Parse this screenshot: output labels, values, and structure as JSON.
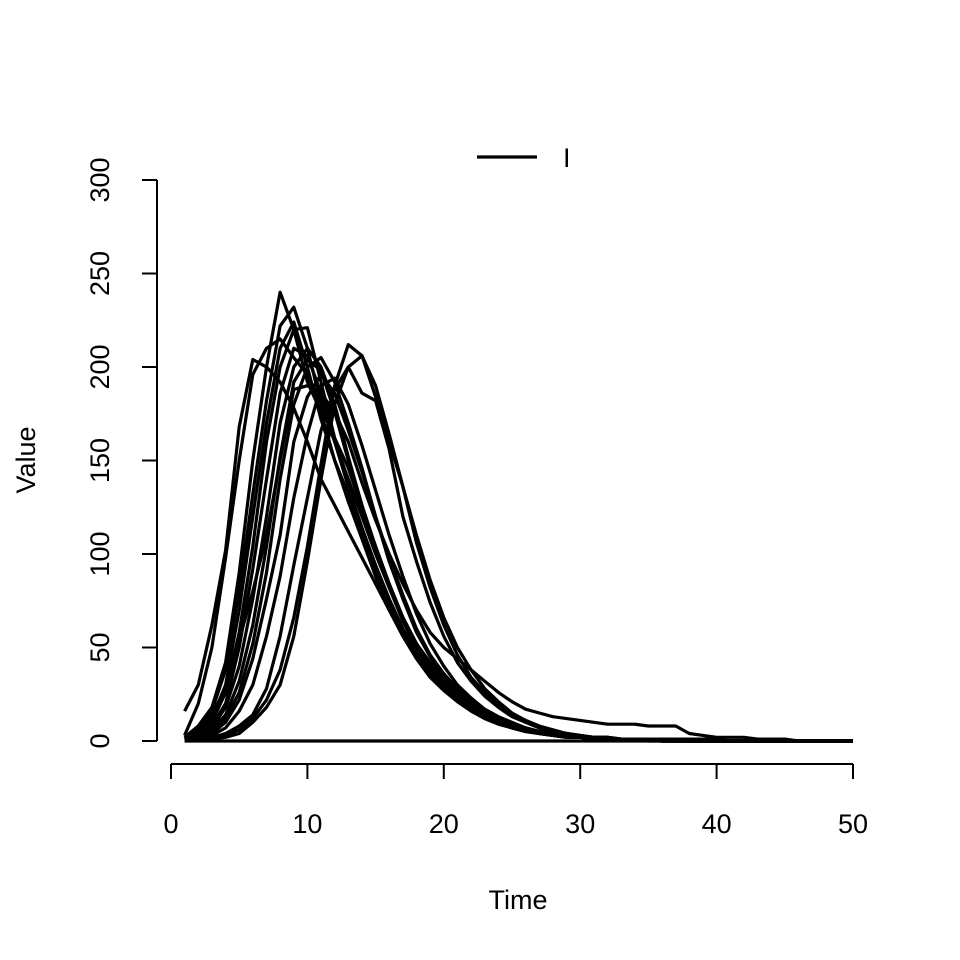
{
  "chart_data": {
    "type": "line",
    "xlabel": "Time",
    "ylabel": "Value",
    "xlim": [
      0,
      50
    ],
    "ylim": [
      0,
      300
    ],
    "x_ticks": [
      0,
      10,
      20,
      30,
      40,
      50
    ],
    "y_ticks": [
      0,
      50,
      100,
      150,
      200,
      250,
      300
    ],
    "x_tick_labels": [
      "0",
      "10",
      "20",
      "30",
      "40",
      "50"
    ],
    "y_tick_labels": [
      "0",
      "50",
      "100",
      "150",
      "200",
      "250",
      "300"
    ],
    "grid": false,
    "legend": {
      "position": "top",
      "entries": [
        {
          "label": "I",
          "color": "#000000"
        }
      ]
    },
    "line_color": "#000000",
    "x": [
      1,
      2,
      3,
      4,
      5,
      6,
      7,
      8,
      9,
      10,
      11,
      12,
      13,
      14,
      15,
      16,
      17,
      18,
      19,
      20,
      21,
      22,
      23,
      24,
      25,
      26,
      27,
      28,
      29,
      30,
      31,
      32,
      33,
      34,
      35,
      36,
      37,
      38,
      39,
      40,
      41,
      42,
      43,
      44,
      45,
      46,
      47,
      48,
      49,
      50
    ],
    "series": [
      {
        "values": [
          16,
          30,
          62,
          102,
          168,
          204,
          200,
          192,
          178,
          160,
          140,
          126,
          112,
          98,
          84,
          70,
          58,
          47,
          38,
          30,
          24,
          19,
          15,
          12,
          9,
          7,
          5,
          4,
          3,
          2,
          2,
          2,
          1,
          1,
          1,
          1,
          1,
          1,
          1,
          1,
          0,
          0,
          0,
          0,
          0,
          0,
          0,
          0,
          0,
          0
        ]
      },
      {
        "values": [
          3,
          20,
          50,
          98,
          150,
          196,
          210,
          215,
          205,
          196,
          180,
          162,
          146,
          124,
          104,
          84,
          66,
          52,
          42,
          32,
          26,
          20,
          16,
          12,
          9,
          7,
          5,
          4,
          3,
          2,
          2,
          1,
          1,
          1,
          1,
          1,
          1,
          1,
          1,
          0,
          0,
          0,
          0,
          0,
          0,
          0,
          0,
          0,
          0,
          0
        ]
      },
      {
        "values": [
          2,
          8,
          18,
          42,
          90,
          150,
          200,
          240,
          220,
          192,
          176,
          150,
          132,
          110,
          90,
          72,
          58,
          46,
          36,
          28,
          22,
          17,
          13,
          10,
          8,
          6,
          4,
          3,
          2,
          2,
          1,
          1,
          1,
          1,
          1,
          1,
          0,
          0,
          0,
          0,
          0,
          0,
          0,
          0,
          0,
          0,
          0,
          0,
          0,
          0
        ]
      },
      {
        "values": [
          2,
          6,
          16,
          38,
          80,
          132,
          182,
          222,
          232,
          210,
          180,
          160,
          140,
          120,
          100,
          82,
          66,
          52,
          40,
          32,
          25,
          19,
          15,
          11,
          8,
          6,
          5,
          4,
          3,
          2,
          2,
          1,
          1,
          1,
          1,
          1,
          1,
          0,
          0,
          0,
          0,
          0,
          0,
          0,
          0,
          0,
          0,
          0,
          0,
          0
        ]
      },
      {
        "values": [
          1,
          4,
          12,
          30,
          70,
          120,
          170,
          210,
          224,
          200,
          172,
          150,
          128,
          108,
          88,
          70,
          56,
          44,
          34,
          27,
          21,
          16,
          12,
          9,
          7,
          5,
          4,
          3,
          2,
          2,
          1,
          1,
          1,
          1,
          1,
          0,
          0,
          0,
          0,
          0,
          0,
          0,
          0,
          0,
          0,
          0,
          0,
          0,
          0,
          0
        ]
      },
      {
        "values": [
          1,
          4,
          10,
          26,
          58,
          104,
          160,
          200,
          220,
          221,
          192,
          162,
          136,
          112,
          92,
          74,
          58,
          46,
          36,
          28,
          22,
          17,
          13,
          10,
          7,
          5,
          4,
          3,
          2,
          2,
          1,
          1,
          1,
          1,
          1,
          0,
          0,
          0,
          0,
          0,
          0,
          0,
          0,
          0,
          0,
          0,
          0,
          0,
          0,
          0
        ]
      },
      {
        "values": [
          1,
          3,
          8,
          20,
          50,
          92,
          140,
          186,
          210,
          206,
          186,
          160,
          136,
          114,
          94,
          76,
          60,
          48,
          38,
          30,
          23,
          18,
          14,
          10,
          8,
          6,
          4,
          3,
          2,
          2,
          1,
          1,
          1,
          1,
          0,
          0,
          0,
          0,
          0,
          0,
          0,
          0,
          0,
          0,
          0,
          0,
          0,
          0,
          0,
          0
        ]
      },
      {
        "values": [
          1,
          3,
          7,
          18,
          40,
          76,
          120,
          170,
          200,
          210,
          200,
          180,
          152,
          126,
          102,
          82,
          64,
          50,
          39,
          31,
          24,
          18,
          14,
          11,
          8,
          6,
          4,
          3,
          3,
          2,
          2,
          1,
          1,
          1,
          1,
          0,
          0,
          0,
          0,
          0,
          0,
          0,
          0,
          0,
          0,
          0,
          0,
          0,
          0,
          0
        ]
      },
      {
        "values": [
          1,
          2,
          6,
          14,
          32,
          62,
          104,
          152,
          192,
          204,
          198,
          176,
          150,
          126,
          104,
          84,
          66,
          52,
          40,
          31,
          24,
          19,
          14,
          11,
          8,
          6,
          5,
          4,
          3,
          2,
          2,
          1,
          1,
          1,
          1,
          0,
          0,
          0,
          0,
          0,
          0,
          0,
          0,
          0,
          0,
          0,
          0,
          0,
          0,
          0
        ]
      },
      {
        "values": [
          1,
          2,
          5,
          12,
          26,
          52,
          90,
          140,
          180,
          200,
          205,
          192,
          170,
          146,
          120,
          96,
          76,
          58,
          45,
          34,
          26,
          20,
          15,
          11,
          8,
          6,
          5,
          4,
          3,
          2,
          2,
          1,
          1,
          1,
          1,
          1,
          0,
          0,
          0,
          0,
          0,
          0,
          0,
          0,
          0,
          0,
          0,
          0,
          0,
          0
        ]
      },
      {
        "values": [
          1,
          2,
          4,
          10,
          22,
          44,
          76,
          110,
          160,
          184,
          196,
          186,
          166,
          144,
          120,
          98,
          78,
          60,
          46,
          36,
          28,
          21,
          16,
          12,
          9,
          7,
          5,
          4,
          3,
          2,
          2,
          1,
          1,
          1,
          1,
          0,
          0,
          0,
          0,
          0,
          0,
          0,
          0,
          0,
          0,
          0,
          0,
          0,
          0,
          0
        ]
      },
      {
        "values": [
          1,
          2,
          3,
          7,
          16,
          30,
          56,
          88,
          130,
          164,
          190,
          194,
          180,
          158,
          134,
          110,
          88,
          68,
          52,
          40,
          30,
          23,
          17,
          13,
          10,
          7,
          5,
          4,
          3,
          2,
          2,
          1,
          1,
          1,
          1,
          0,
          0,
          0,
          0,
          0,
          0,
          0,
          0,
          0,
          0,
          0,
          0,
          0,
          0,
          0
        ]
      },
      {
        "values": [
          1,
          1,
          2,
          4,
          8,
          14,
          28,
          56,
          94,
          130,
          166,
          188,
          200,
          206,
          190,
          164,
          136,
          110,
          86,
          66,
          50,
          38,
          28,
          21,
          15,
          11,
          8,
          6,
          4,
          3,
          2,
          2,
          1,
          1,
          1,
          1,
          0,
          0,
          0,
          0,
          0,
          0,
          0,
          0,
          0,
          0,
          0,
          0,
          0,
          0
        ]
      },
      {
        "values": [
          1,
          1,
          2,
          3,
          6,
          12,
          22,
          38,
          66,
          104,
          148,
          190,
          212,
          206,
          184,
          160,
          136,
          106,
          82,
          62,
          46,
          34,
          26,
          19,
          14,
          10,
          7,
          5,
          4,
          3,
          2,
          2,
          1,
          1,
          1,
          1,
          0,
          0,
          0,
          0,
          0,
          0,
          0,
          0,
          0,
          0,
          0,
          0,
          0,
          0
        ]
      },
      {
        "values": [
          1,
          1,
          1,
          2,
          4,
          10,
          18,
          30,
          56,
          96,
          140,
          180,
          200,
          186,
          182,
          156,
          120,
          96,
          74,
          56,
          42,
          32,
          24,
          18,
          13,
          10,
          7,
          5,
          4,
          3,
          2,
          2,
          1,
          1,
          1,
          0,
          0,
          0,
          0,
          0,
          0,
          0,
          0,
          0,
          0,
          0,
          0,
          0,
          0,
          0
        ]
      },
      {
        "values": [
          2,
          5,
          14,
          28,
          54,
          80,
          110,
          150,
          188,
          190,
          186,
          176,
          160,
          138,
          118,
          100,
          84,
          70,
          58,
          50,
          44,
          38,
          32,
          26,
          21,
          17,
          15,
          13,
          12,
          11,
          10,
          9,
          9,
          9,
          8,
          8,
          8,
          4,
          3,
          2,
          2,
          2,
          1,
          1,
          1,
          0,
          0,
          0,
          0,
          0
        ]
      },
      {
        "values": [
          0,
          0,
          0,
          0,
          0,
          0,
          0,
          0,
          0,
          0,
          0,
          0,
          0,
          0,
          0,
          0,
          0,
          0,
          0,
          0,
          0,
          0,
          0,
          0,
          0,
          0,
          0,
          0,
          0,
          0,
          0,
          0,
          0,
          0,
          0,
          0,
          0,
          0,
          0,
          0,
          0,
          0,
          0,
          0,
          0,
          0,
          0,
          0,
          0,
          0
        ]
      }
    ]
  }
}
